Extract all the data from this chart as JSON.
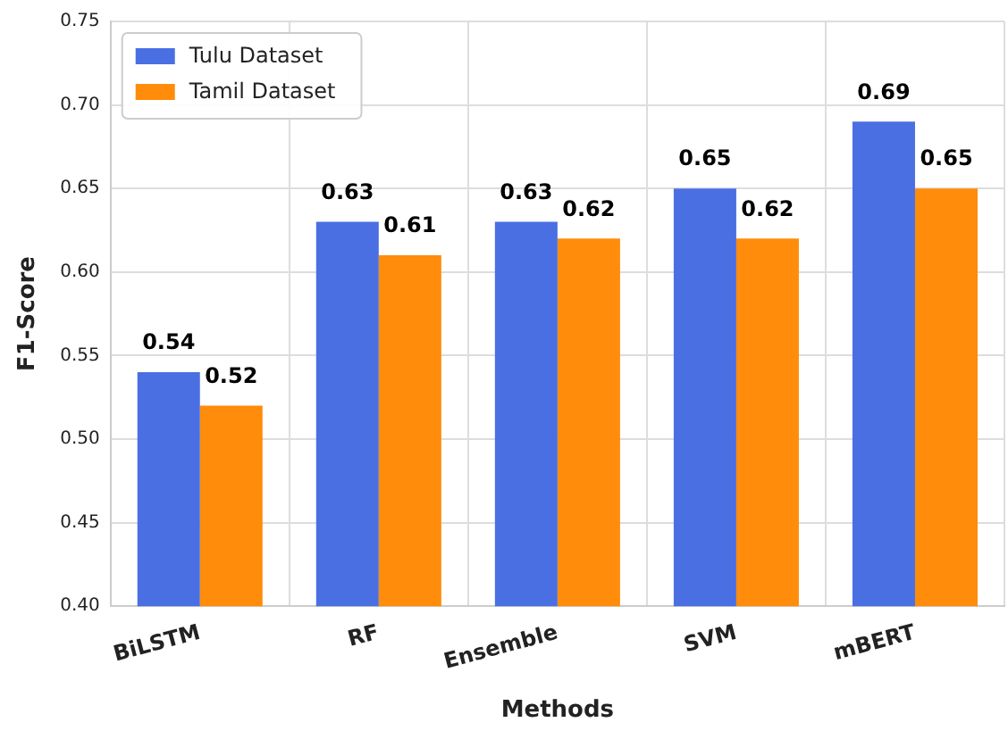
{
  "chart_data": {
    "type": "bar",
    "xlabel": "Methods",
    "ylabel": "F1-Score",
    "categories": [
      "BiLSTM",
      "RF",
      "Ensemble",
      "SVM",
      "mBERT"
    ],
    "series": [
      {
        "name": "Tulu Dataset",
        "color": "#4a6fe3",
        "values": [
          0.54,
          0.63,
          0.63,
          0.65,
          0.69
        ]
      },
      {
        "name": "Tamil Dataset",
        "color": "#ff8c0a",
        "values": [
          0.52,
          0.61,
          0.62,
          0.62,
          0.65
        ]
      }
    ],
    "ylim": [
      0.4,
      0.75
    ],
    "yticks": [
      {
        "value": 0.4,
        "label": "0.40"
      },
      0.45,
      {
        "value": 0.5,
        "label": "0.50"
      },
      0.55,
      {
        "value": 0.6,
        "label": "0.60"
      },
      0.65,
      {
        "value": 0.7,
        "label": "0.70"
      },
      0.75
    ],
    "grid": true,
    "legend": "top left",
    "data_labels": true
  }
}
